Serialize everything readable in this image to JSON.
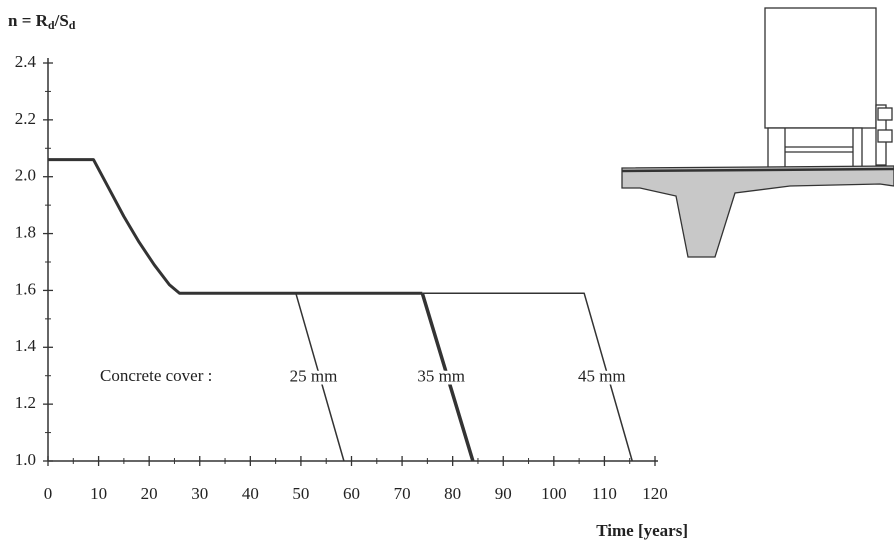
{
  "chart_data": {
    "type": "line",
    "ylabel_parts": [
      "n = R",
      "d",
      "/S",
      "d"
    ],
    "xlabel": "Time [years]",
    "annotation": "Concrete cover :",
    "xlim": [
      0,
      120
    ],
    "xticks": [
      0,
      10,
      20,
      30,
      40,
      50,
      60,
      70,
      80,
      90,
      100,
      110,
      120
    ],
    "ylim": [
      1,
      2.4
    ],
    "yticks": [
      {
        "value": 1,
        "label": "1.0"
      },
      1.2,
      1.4,
      1.6,
      1.8,
      {
        "value": 2,
        "label": "2.0"
      },
      2.2,
      2.4
    ],
    "color": "#333333",
    "series": [
      {
        "x": [
          0,
          9,
          12,
          15,
          18,
          21,
          24,
          26,
          74
        ],
        "values": [
          2.06,
          2.06,
          1.96,
          1.86,
          1.77,
          1.69,
          1.62,
          1.59,
          1.59
        ],
        "width": 3
      },
      {
        "name": "25 mm",
        "x": [
          49,
          58.5
        ],
        "values": [
          1.59,
          1.0
        ],
        "width": 1.5
      },
      {
        "name": "35 mm",
        "x": [
          74,
          84
        ],
        "values": [
          1.59,
          1.0
        ],
        "width": 3.5
      },
      {
        "name": "45 mm",
        "x": [
          74,
          106,
          115.5
        ],
        "values": [
          1.59,
          1.59,
          1.0
        ],
        "width": 1.5
      }
    ]
  }
}
